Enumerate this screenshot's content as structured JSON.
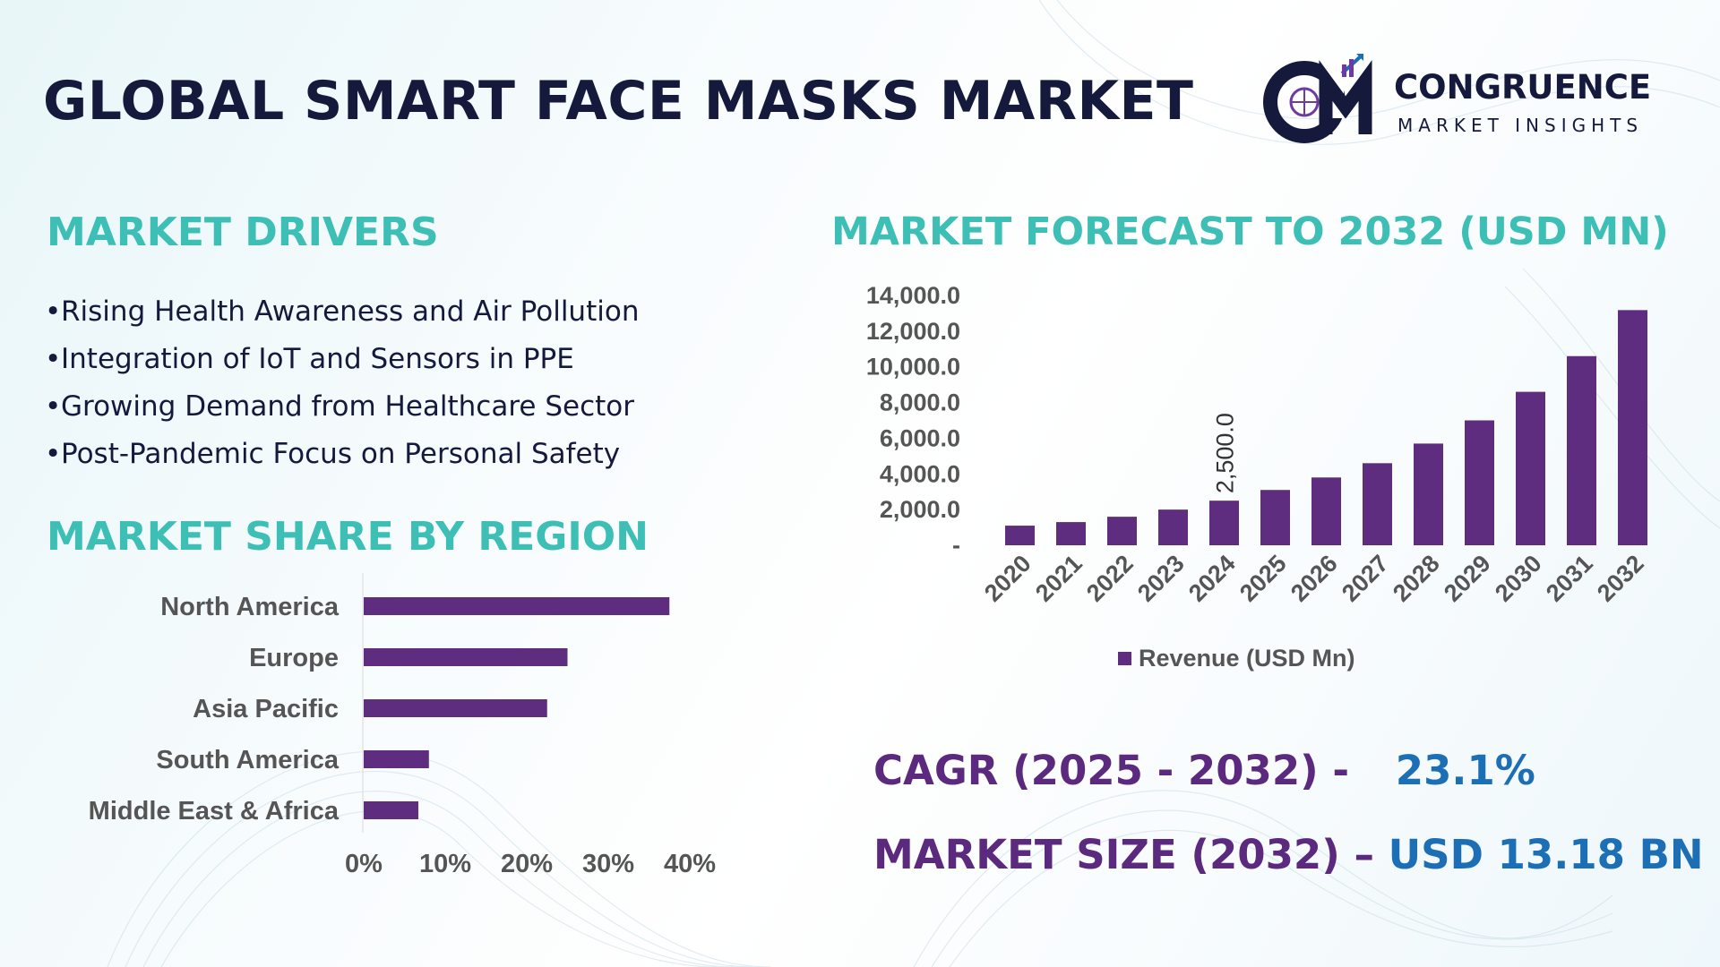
{
  "title": "GLOBAL SMART FACE MASKS MARKET",
  "logo": {
    "name": "CONGRUENCE",
    "subtitle": "MARKET INSIGHTS",
    "monogram": "CM"
  },
  "drivers": {
    "heading": "MARKET DRIVERS",
    "bullet": "•",
    "items": [
      "Rising Health Awareness and Air Pollution",
      "Integration of IoT and Sensors in PPE",
      "Growing Demand from Healthcare Sector",
      "Post-Pandemic Focus on Personal Safety"
    ]
  },
  "forecast_heading": "MARKET FORECAST TO 2032 (USD MN)",
  "region_heading": "MARKET SHARE BY REGION",
  "kpis": {
    "cagr_label": "CAGR (2025 - 2032) -",
    "cagr_value": "23.1%",
    "size_label": "MARKET SIZE (2032) –",
    "size_value": "USD 13.18 BN"
  },
  "colors": {
    "bar": "#5e2d7f",
    "heading": "#3dbfb6",
    "title": "#151a3c",
    "kpi_label": "#5b2a7e",
    "kpi_value": "#1c6fb5",
    "axis_text": "#555555"
  },
  "chart_data": [
    {
      "type": "bar",
      "orientation": "vertical",
      "categories": [
        "2020",
        "2021",
        "2022",
        "2023",
        "2024",
        "2025",
        "2026",
        "2027",
        "2028",
        "2029",
        "2030",
        "2031",
        "2032"
      ],
      "series": [
        {
          "name": "Revenue (USD Mn)",
          "values": [
            1100,
            1300,
            1600,
            2000,
            2500,
            3100,
            3800,
            4600,
            5700,
            7000,
            8600,
            10600,
            13180
          ]
        }
      ],
      "data_labels": [
        {
          "category": "2024",
          "text": "2,500.0"
        }
      ],
      "y_ticks": [
        "-",
        "2,000.0",
        "4,000.0",
        "6,000.0",
        "8,000.0",
        "10,000.0",
        "12,000.0",
        "14,000.0"
      ],
      "ylim": [
        0,
        14000
      ],
      "legend": "bottom",
      "grid": false
    },
    {
      "type": "bar",
      "orientation": "horizontal",
      "categories": [
        "North America",
        "Europe",
        "Asia Pacific",
        "South America",
        "Middle East & Africa"
      ],
      "values": [
        0.375,
        0.25,
        0.225,
        0.08,
        0.067
      ],
      "x_ticks": [
        "0%",
        "10%",
        "20%",
        "30%",
        "40%"
      ],
      "xlim": [
        0,
        0.4
      ],
      "grid": false,
      "legend": "none"
    }
  ]
}
